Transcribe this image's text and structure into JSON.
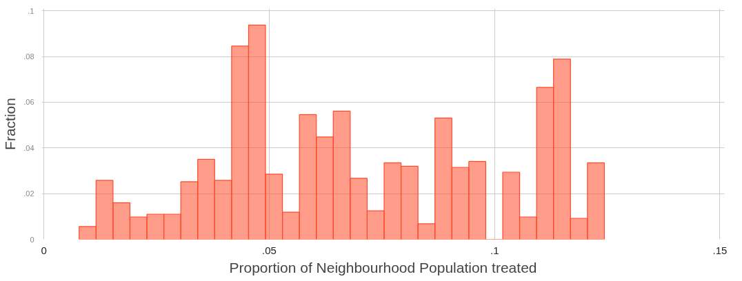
{
  "chart_data": {
    "type": "histogram",
    "xlabel": "Proportion of Neighbourhood Population treated",
    "ylabel": "Fraction",
    "bins": [
      0.0078,
      0.01156,
      0.01532,
      0.01908,
      0.02284,
      0.0266,
      0.03036,
      0.03412,
      0.03788,
      0.04164,
      0.0454,
      0.04916,
      0.05292,
      0.05668,
      0.06044,
      0.0642,
      0.06796,
      0.07172,
      0.07548,
      0.07924,
      0.083,
      0.08676,
      0.09052,
      0.09428,
      0.09804,
      0.1018,
      0.10556,
      0.10932,
      0.11308,
      0.11684,
      0.1206,
      0.12436
    ],
    "values": [
      0.0056,
      0.0258,
      0.016,
      0.0098,
      0.011,
      0.011,
      0.0252,
      0.035,
      0.0258,
      0.0846,
      0.0938,
      0.0285,
      0.0119,
      0.0546,
      0.0448,
      0.0561,
      0.0267,
      0.0125,
      0.0335,
      0.032,
      0.0068,
      0.0531,
      0.0315,
      0.0341,
      0,
      0.0294,
      0.0098,
      0.0665,
      0.0789,
      0.0092,
      0.0335
    ],
    "color": "#ff4a2a",
    "xlim": [
      -0.0005,
      0.151
    ],
    "ylim": [
      0,
      0.101
    ],
    "xticks": [
      {
        "value": 0,
        "label": "0"
      },
      {
        "value": 0.05,
        "label": ".05"
      },
      {
        "value": 0.1,
        "label": ".1"
      },
      {
        "value": 0.15,
        "label": ".15"
      }
    ],
    "yticks": [
      {
        "value": 0,
        "label": "0"
      },
      {
        "value": 0.02,
        "label": ".02"
      },
      {
        "value": 0.04,
        "label": ".04"
      },
      {
        "value": 0.06,
        "label": ".06"
      },
      {
        "value": 0.08,
        "label": ".08"
      },
      {
        "value": 0.1,
        "label": ".1"
      }
    ],
    "grid": true
  }
}
